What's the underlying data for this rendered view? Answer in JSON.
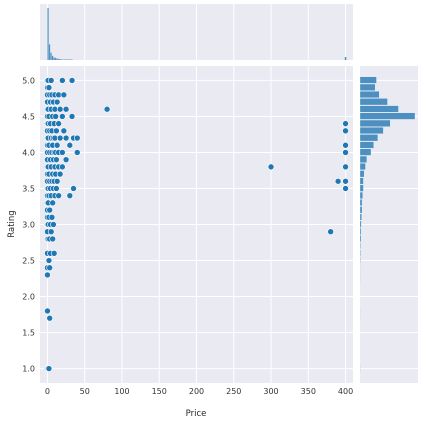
{
  "chart_data": {
    "type": "scatter",
    "subtype": "jointplot",
    "xlabel": "Price",
    "ylabel": "Rating",
    "xlim": [
      -10,
      410
    ],
    "ylim": [
      0.8,
      5.2
    ],
    "xticks": [
      0,
      50,
      100,
      150,
      200,
      250,
      300,
      350,
      400
    ],
    "yticks": [
      1.0,
      1.5,
      2.0,
      2.5,
      3.0,
      3.5,
      4.0,
      4.5,
      5.0
    ],
    "grid": true,
    "background": "#eaeaf2",
    "point_color": "#1f77b4",
    "bar_color": "#4c8fc0",
    "points": [
      [
        0,
        5.0
      ],
      [
        0,
        4.9
      ],
      [
        0,
        4.8
      ],
      [
        0,
        4.7
      ],
      [
        0,
        4.6
      ],
      [
        0,
        4.5
      ],
      [
        0,
        4.4
      ],
      [
        0,
        4.3
      ],
      [
        0,
        4.2
      ],
      [
        0,
        4.1
      ],
      [
        0,
        4.0
      ],
      [
        0,
        3.9
      ],
      [
        0,
        3.8
      ],
      [
        0,
        3.7
      ],
      [
        0,
        3.6
      ],
      [
        0,
        3.5
      ],
      [
        0,
        3.4
      ],
      [
        0,
        3.3
      ],
      [
        0,
        3.2
      ],
      [
        0,
        3.1
      ],
      [
        0,
        3.0
      ],
      [
        0,
        2.9
      ],
      [
        0,
        2.8
      ],
      [
        0,
        2.6
      ],
      [
        0,
        2.4
      ],
      [
        0,
        2.3
      ],
      [
        0,
        1.8
      ],
      [
        0,
        1.0
      ],
      [
        1,
        5.0
      ],
      [
        1,
        4.6
      ],
      [
        1,
        4.4
      ],
      [
        1,
        4.2
      ],
      [
        1,
        3.8
      ],
      [
        1,
        3.5
      ],
      [
        1,
        3.3
      ],
      [
        1,
        3.0
      ],
      [
        1,
        2.8
      ],
      [
        1,
        1.0
      ],
      [
        2,
        4.9
      ],
      [
        2,
        4.5
      ],
      [
        2,
        4.1
      ],
      [
        2,
        3.7
      ],
      [
        2,
        3.4
      ],
      [
        2,
        3.1
      ],
      [
        2,
        2.5
      ],
      [
        2,
        1.0
      ],
      [
        3,
        4.8
      ],
      [
        3,
        4.3
      ],
      [
        3,
        4.0
      ],
      [
        3,
        3.6
      ],
      [
        3,
        3.2
      ],
      [
        3,
        2.8
      ],
      [
        3,
        2.4
      ],
      [
        3,
        1.7
      ],
      [
        4,
        4.7
      ],
      [
        4,
        4.4
      ],
      [
        4,
        3.9
      ],
      [
        4,
        3.5
      ],
      [
        4,
        3.0
      ],
      [
        4,
        2.6
      ],
      [
        5,
        5.0
      ],
      [
        5,
        4.6
      ],
      [
        5,
        4.2
      ],
      [
        5,
        3.8
      ],
      [
        5,
        3.4
      ],
      [
        5,
        2.9
      ],
      [
        6,
        4.8
      ],
      [
        6,
        4.3
      ],
      [
        6,
        4.0
      ],
      [
        6,
        3.6
      ],
      [
        6,
        3.1
      ],
      [
        7,
        4.5
      ],
      [
        7,
        4.1
      ],
      [
        7,
        3.7
      ],
      [
        7,
        3.3
      ],
      [
        7,
        2.8
      ],
      [
        8,
        4.7
      ],
      [
        8,
        4.2
      ],
      [
        8,
        3.9
      ],
      [
        8,
        3.5
      ],
      [
        8,
        3.0
      ],
      [
        9,
        4.4
      ],
      [
        9,
        4.0
      ],
      [
        9,
        3.6
      ],
      [
        9,
        2.6
      ],
      [
        10,
        4.8
      ],
      [
        10,
        4.6
      ],
      [
        10,
        4.2
      ],
      [
        10,
        3.8
      ],
      [
        10,
        3.4
      ],
      [
        11,
        4.5
      ],
      [
        11,
        4.0
      ],
      [
        11,
        3.7
      ],
      [
        12,
        4.3
      ],
      [
        12,
        3.9
      ],
      [
        12,
        3.5
      ],
      [
        13,
        4.7
      ],
      [
        13,
        4.1
      ],
      [
        13,
        3.6
      ],
      [
        15,
        4.8
      ],
      [
        15,
        4.4
      ],
      [
        15,
        4.0
      ],
      [
        15,
        3.8
      ],
      [
        15,
        3.4
      ],
      [
        17,
        4.6
      ],
      [
        17,
        4.2
      ],
      [
        17,
        3.7
      ],
      [
        20,
        5.0
      ],
      [
        20,
        4.5
      ],
      [
        20,
        4.0
      ],
      [
        20,
        3.8
      ],
      [
        22,
        4.8
      ],
      [
        22,
        4.3
      ],
      [
        25,
        4.6
      ],
      [
        25,
        4.2
      ],
      [
        25,
        3.9
      ],
      [
        30,
        4.1
      ],
      [
        30,
        3.4
      ],
      [
        33,
        5.0
      ],
      [
        33,
        4.5
      ],
      [
        35,
        4.2
      ],
      [
        35,
        3.5
      ],
      [
        40,
        4.2
      ],
      [
        40,
        4.0
      ],
      [
        80,
        4.6
      ],
      [
        300,
        3.8
      ],
      [
        380,
        2.9
      ],
      [
        390,
        3.6
      ],
      [
        400,
        4.4
      ],
      [
        400,
        4.3
      ],
      [
        400,
        4.1
      ],
      [
        400,
        4.0
      ],
      [
        400,
        3.8
      ],
      [
        400,
        3.6
      ],
      [
        400,
        3.5
      ]
    ],
    "marginal_x": {
      "bin_width": 2,
      "counts": [
        100,
        30,
        14,
        8,
        5,
        4,
        3,
        2,
        2,
        1,
        1,
        1,
        1,
        1,
        1,
        1,
        1,
        0,
        0,
        0
      ]
    },
    "marginal_y": {
      "bin_width": 0.1,
      "bins": [
        [
          5.0,
          12
        ],
        [
          4.9,
          11
        ],
        [
          4.8,
          14
        ],
        [
          4.7,
          20
        ],
        [
          4.6,
          28
        ],
        [
          4.5,
          40
        ],
        [
          4.4,
          22
        ],
        [
          4.3,
          17
        ],
        [
          4.2,
          13
        ],
        [
          4.1,
          10
        ],
        [
          4.0,
          8
        ],
        [
          3.9,
          5
        ],
        [
          3.8,
          4
        ],
        [
          3.7,
          3
        ],
        [
          3.6,
          2.5
        ],
        [
          3.5,
          2.5
        ],
        [
          3.4,
          2
        ],
        [
          3.3,
          1.5
        ],
        [
          3.2,
          1.5
        ],
        [
          3.1,
          1.2
        ],
        [
          3.0,
          1
        ],
        [
          2.9,
          0.8
        ],
        [
          2.8,
          0.8
        ],
        [
          2.7,
          0.5
        ],
        [
          2.6,
          0.5
        ],
        [
          2.5,
          0.4
        ],
        [
          2.4,
          0.3
        ],
        [
          2.3,
          0.3
        ],
        [
          2.2,
          0.2
        ],
        [
          1.8,
          0.2
        ],
        [
          1.7,
          0.2
        ],
        [
          1.0,
          0.3
        ]
      ]
    }
  }
}
